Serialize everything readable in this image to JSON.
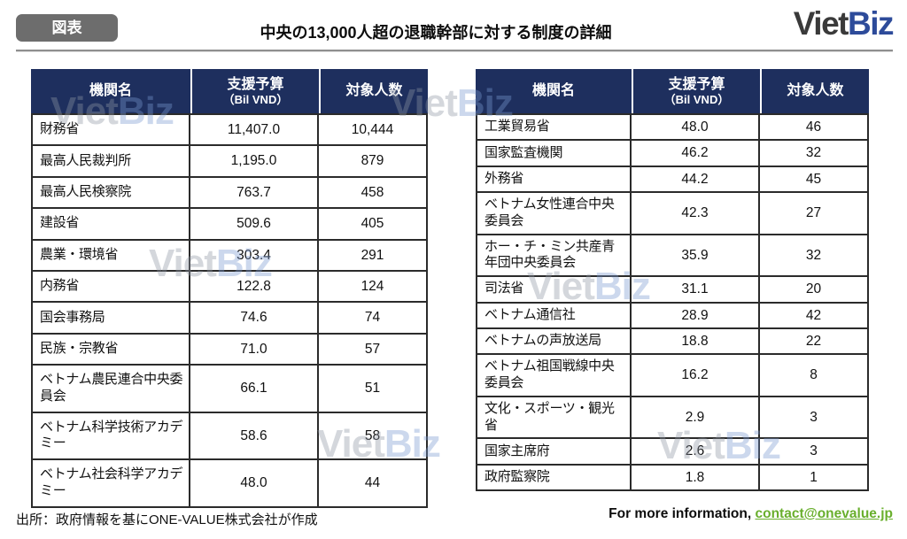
{
  "header": {
    "badge_label": "図表",
    "title": "中央の13,000人超の退職幹部に対する制度の詳細",
    "logo_viet": "Viet",
    "logo_biz": "Biz"
  },
  "columns": {
    "org": "機関名",
    "budget": "支援予算",
    "budget_sub": "（Bil VND）",
    "count": "対象人数"
  },
  "watermark": {
    "part1": "Viet",
    "part2": "Biz"
  },
  "footer": {
    "source": "出所：政府情報を基にONE-VALUE株式会社が作成",
    "contact_prefix": "For more information, ",
    "contact_email": "contact@onevalue.jp"
  },
  "colors": {
    "header_navy": "#1e2f5e",
    "badge_gray": "#6d6d6d",
    "logo_dark": "#3a3a3a",
    "logo_blue": "#2d4b9a",
    "email_green": "#69af2d",
    "border_dark": "#2b2b2b"
  },
  "chart_data": [
    {
      "type": "table",
      "title": "中央の13,000人超の退職幹部に対する制度の詳細",
      "columns": [
        "機関名",
        "支援予算（Bil VND）",
        "対象人数"
      ],
      "rows": [
        [
          "財務省",
          "11,407.0",
          "10,444"
        ],
        [
          "最高人民裁判所",
          "1,195.0",
          "879"
        ],
        [
          "最高人民検察院",
          "763.7",
          "458"
        ],
        [
          "建設省",
          "509.6",
          "405"
        ],
        [
          "農業・環境省",
          "303.4",
          "291"
        ],
        [
          "内務省",
          "122.8",
          "124"
        ],
        [
          "国会事務局",
          "74.6",
          "74"
        ],
        [
          "民族・宗教省",
          "71.0",
          "57"
        ],
        [
          "ベトナム農民連合中央委員会",
          "66.1",
          "51"
        ],
        [
          "ベトナム科学技術アカデミー",
          "58.6",
          "58"
        ],
        [
          "ベトナム社会科学アカデミー",
          "48.0",
          "44"
        ]
      ]
    },
    {
      "type": "table",
      "title": "中央の13,000人超の退職幹部に対する制度の詳細",
      "columns": [
        "機関名",
        "支援予算（Bil VND）",
        "対象人数"
      ],
      "rows": [
        [
          "工業貿易省",
          "48.0",
          "46"
        ],
        [
          "国家監査機関",
          "46.2",
          "32"
        ],
        [
          "外務省",
          "44.2",
          "45"
        ],
        [
          "ベトナム女性連合中央委員会",
          "42.3",
          "27"
        ],
        [
          "ホー・チ・ミン共産青年団中央委員会",
          "35.9",
          "32"
        ],
        [
          "司法省",
          "31.1",
          "20"
        ],
        [
          "ベトナム通信社",
          "28.9",
          "42"
        ],
        [
          "ベトナムの声放送局",
          "18.8",
          "22"
        ],
        [
          "ベトナム祖国戦線中央委員会",
          "16.2",
          "8"
        ],
        [
          "文化・スポーツ・観光省",
          "2.9",
          "3"
        ],
        [
          "国家主席府",
          "2.6",
          "3"
        ],
        [
          "政府監察院",
          "1.8",
          "1"
        ]
      ]
    }
  ]
}
